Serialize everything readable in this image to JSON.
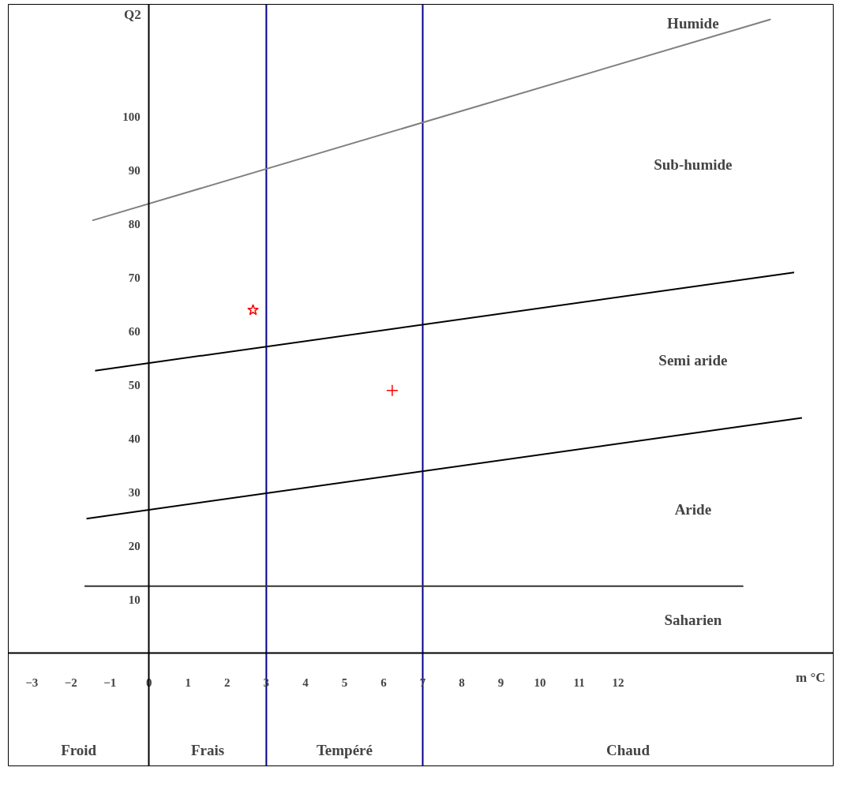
{
  "chart_data": {
    "type": "line",
    "xlabel": "m °C",
    "ylabel": "Q2",
    "xlim": [
      -3.6,
      17.5
    ],
    "ylim": [
      -21,
      121
    ],
    "xticks": [
      -3,
      -2,
      -1,
      0,
      1,
      2,
      3,
      4,
      5,
      6,
      7,
      8,
      9,
      10,
      11,
      12
    ],
    "yticks": [
      10,
      20,
      30,
      40,
      50,
      60,
      70,
      80,
      90,
      100
    ],
    "series": [
      {
        "color": "#808080",
        "x": [
          -1.45,
          15.9
        ],
        "values": [
          80.7,
          118.2
        ]
      },
      {
        "color": "#000000",
        "x": [
          -1.38,
          16.5
        ],
        "values": [
          52.7,
          71.0
        ]
      },
      {
        "color": "#000000",
        "x": [
          -1.6,
          16.7
        ],
        "values": [
          25.1,
          43.9
        ]
      },
      {
        "color": "#333333",
        "x": [
          -1.65,
          15.2
        ],
        "values": [
          12.5,
          12.5
        ]
      },
      {
        "type": "scatter",
        "marker": "star",
        "color": "#ff0000",
        "x": [
          2.66
        ],
        "values": [
          64.0
        ]
      },
      {
        "type": "scatter",
        "marker": "cross",
        "color": "#ff0000",
        "x": [
          6.22
        ],
        "values": [
          49.0
        ]
      }
    ],
    "ref_lines": [
      {
        "axis": "x",
        "value": 3,
        "color": "#00008b"
      },
      {
        "axis": "x",
        "value": 7,
        "color": "#00008b"
      }
    ],
    "grid": false,
    "annotations": [
      "Humide",
      "Sub-humide",
      "Semi aride",
      "Aride",
      "Saharien",
      "Froid",
      "Frais",
      "Tempéré",
      "Chaud"
    ]
  }
}
